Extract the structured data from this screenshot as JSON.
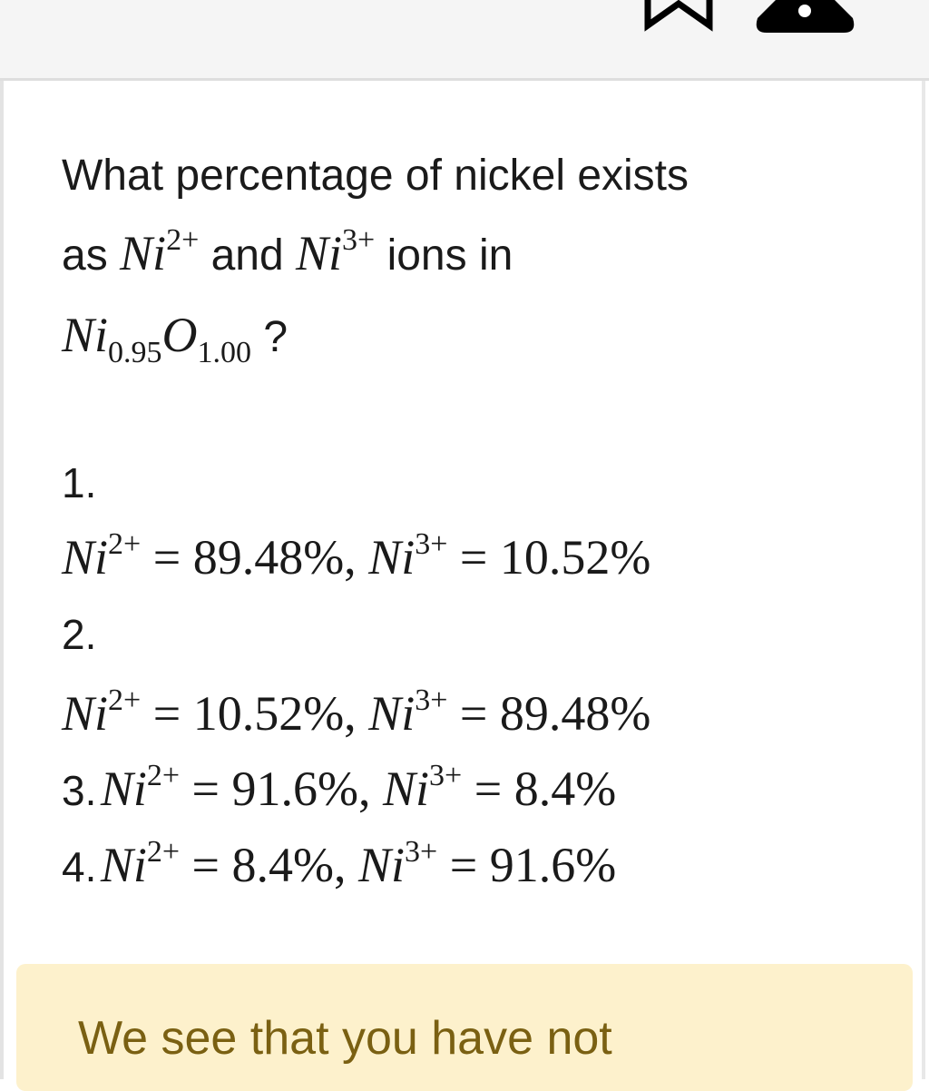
{
  "header": {
    "bookmark_icon": "bookmark-outline-icon",
    "report_icon": "warning-triangle-icon"
  },
  "question": {
    "line1": "What percentage of nickel exists",
    "line2_pre": "as ",
    "ion_symbol": "Ni",
    "ion2_charge": "2+",
    "mid": " and ",
    "ion3_charge": "3+",
    "line2_post": " ions in",
    "formula": {
      "ni": "Ni",
      "ni_sub": "0.95",
      "o": "O",
      "o_sub": "1.00",
      "suffix": " ?"
    }
  },
  "options": [
    {
      "number": "1.",
      "ni2": "89.48%",
      "ni3": "10.52%"
    },
    {
      "number": "2.",
      "ni2": "10.52%",
      "ni3": "89.48%"
    },
    {
      "number": "3.",
      "ni2": "91.6%",
      "ni3": "8.4%"
    },
    {
      "number": "4.",
      "ni2": "8.4%",
      "ni3": "91.6%"
    }
  ],
  "notice": {
    "text": "We see that you have not"
  },
  "colors": {
    "notice_bg": "#fdf1cc",
    "notice_text": "#7a6012"
  }
}
